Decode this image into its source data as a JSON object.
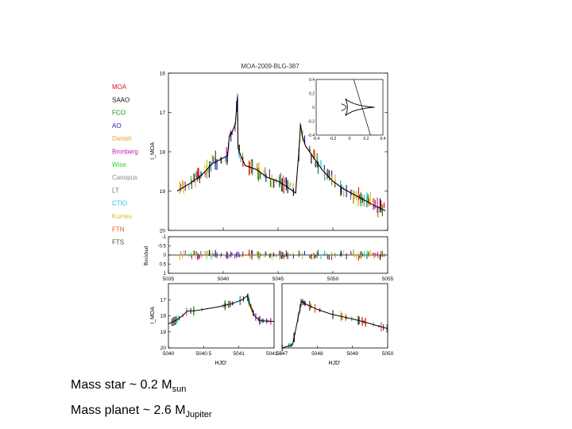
{
  "chart_data": {
    "title": "MOA-2009-BLG-387",
    "type": "scatter",
    "legend_position": "left",
    "legend": [
      {
        "label": "MOA",
        "color": "#e01010"
      },
      {
        "label": "SAAO",
        "color": "#111111"
      },
      {
        "label": "FCO",
        "color": "#1a8a1a"
      },
      {
        "label": "AO",
        "color": "#1a1ab0"
      },
      {
        "label": "Danish",
        "color": "#f0a020"
      },
      {
        "label": "Bronberg",
        "color": "#c020c0"
      },
      {
        "label": "Wise",
        "color": "#30d030"
      },
      {
        "label": "Canopus",
        "color": "#888888"
      },
      {
        "label": "LT",
        "color": "#707070"
      },
      {
        "label": "CTIO",
        "color": "#20c0e0"
      },
      {
        "label": "Kumeu",
        "color": "#d0c020"
      },
      {
        "label": "FTN",
        "color": "#e06020"
      },
      {
        "label": "FTS",
        "color": "#444444"
      }
    ],
    "main_panel": {
      "ylabel": "I_MOA",
      "ylim": [
        20,
        16
      ],
      "yticks": [
        "16",
        "17",
        "18",
        "19",
        "20"
      ],
      "xlim": [
        5035,
        5055
      ],
      "model": {
        "x": [
          5035.8,
          5037,
          5038,
          5039,
          5040.4,
          5040.55,
          5040.8,
          5041.1,
          5041.3,
          5041.35,
          5041.6,
          5042,
          5042.5,
          5043,
          5043.5,
          5044,
          5044.5,
          5045,
          5045.6,
          5046.1,
          5046.6,
          5046.9,
          5047.05,
          5047.2,
          5047.5,
          5048,
          5048.5,
          5049,
          5049.5,
          5050,
          5051,
          5052,
          5053,
          5054,
          5054.8
        ],
        "y": [
          19.0,
          18.8,
          18.6,
          18.3,
          18.1,
          17.6,
          17.5,
          17.3,
          16.6,
          17.9,
          18.1,
          18.35,
          18.4,
          18.45,
          18.55,
          18.65,
          18.7,
          18.75,
          18.85,
          18.95,
          19.05,
          18.0,
          17.3,
          17.6,
          17.85,
          18.05,
          18.25,
          18.45,
          18.6,
          18.75,
          18.95,
          19.1,
          19.25,
          19.4,
          19.5
        ]
      }
    },
    "inset": {
      "description": "caustic",
      "xticks": [
        "-0.4",
        "-0.2",
        "0",
        "0.2",
        "0.4"
      ],
      "yticks": [
        "0.4",
        "0.2",
        "0",
        "-0.2",
        "-0.4"
      ],
      "xlim": [
        -0.4,
        0.4
      ],
      "ylim": [
        -0.4,
        0.4
      ]
    },
    "residual_panel": {
      "ylabel": "Residual",
      "ylim": [
        1,
        -1
      ],
      "yticks": [
        "-1",
        "-0.5",
        "0",
        "0.5",
        "1"
      ],
      "xlim": [
        5035,
        5055
      ],
      "xticks": [
        "5035",
        "5040",
        "5045",
        "5050",
        "5055"
      ]
    },
    "zoom_left": {
      "ylabel": "I_MOA",
      "xlabel": "HJD'",
      "xlim": [
        5040,
        5041.5
      ],
      "xticks": [
        "5040",
        "5040.5",
        "5041",
        "5041.5"
      ],
      "ylim": [
        20,
        16
      ],
      "yticks": [
        "17",
        "18",
        "19",
        "20"
      ]
    },
    "zoom_right": {
      "xlabel": "HJD'",
      "xlim": [
        5047,
        5050
      ],
      "xticks": [
        "5047",
        "5048",
        "5049",
        "5050"
      ],
      "ylim": [
        20,
        16
      ]
    }
  },
  "caption": {
    "line1": {
      "text": "Mass star ~ 0.2 M",
      "sub": "sun"
    },
    "line2": {
      "text": "Mass planet ~ 2.6 M",
      "sub": "Jupiter"
    }
  }
}
